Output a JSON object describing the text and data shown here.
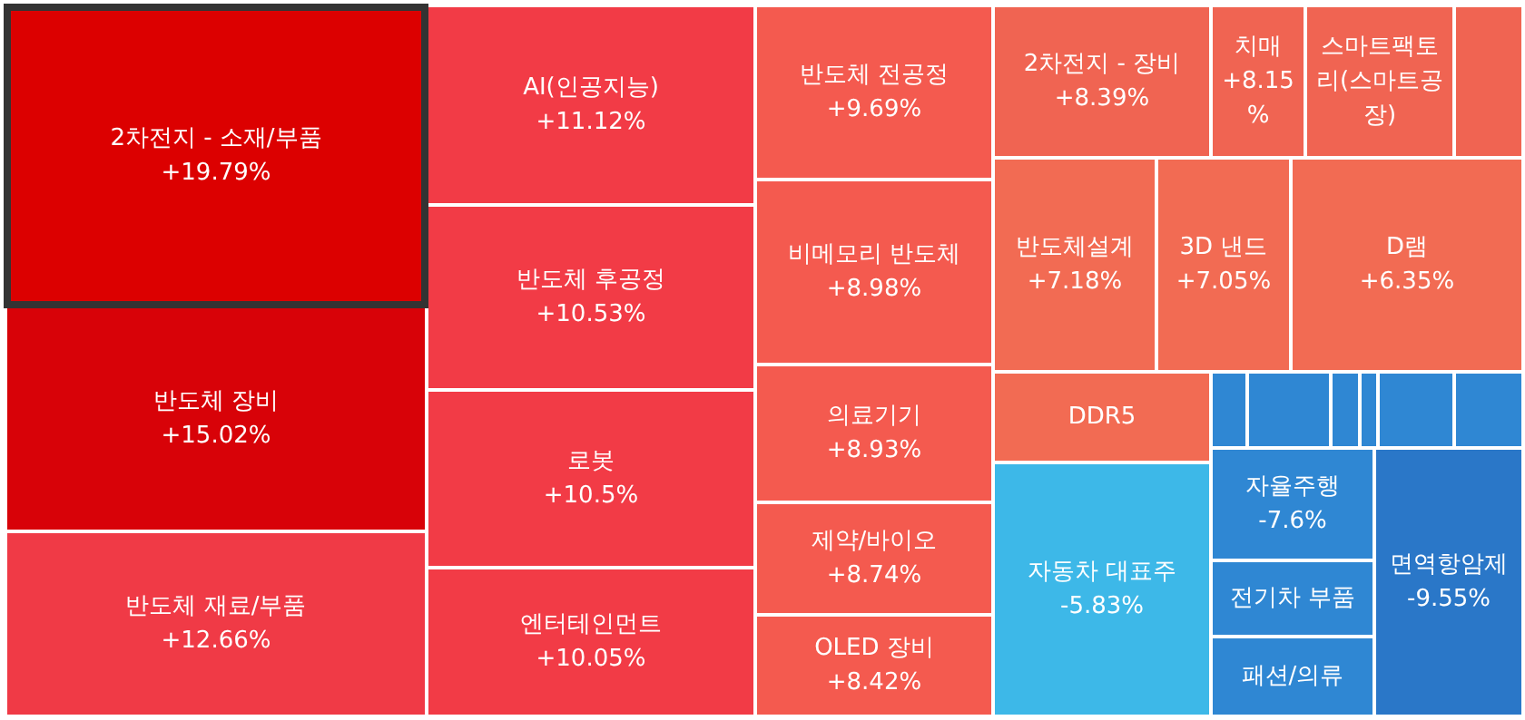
{
  "chart_data": {
    "type": "other",
    "categories": [
      "2차전지 - 소재/부품",
      "반도체 장비",
      "반도체 재료/부품",
      "AI(인공지능)",
      "반도체 후공정",
      "로봇",
      "엔터테인먼트",
      "반도체 전공정",
      "비메모리 반도체",
      "의료기기",
      "제약/바이오",
      "OLED 장비",
      "2차전지 - 장비",
      "치매",
      "스마트팩토리(스마트공장)",
      null,
      "반도체설계",
      "3D 낸드",
      "D램",
      "DDR5",
      "자동차 대표주",
      null,
      null,
      null,
      null,
      null,
      null,
      "자율주행",
      "전기차 부품",
      "패션/의류",
      "면역항암제"
    ],
    "values": [
      19.79,
      15.02,
      12.66,
      11.12,
      10.53,
      10.5,
      10.05,
      9.69,
      8.98,
      8.93,
      8.74,
      8.42,
      8.39,
      8.15,
      null,
      null,
      7.18,
      7.05,
      6.35,
      null,
      -5.83,
      null,
      null,
      null,
      null,
      null,
      null,
      -7.6,
      null,
      null,
      -9.55
    ],
    "value_labels": [
      "+19.79%",
      "+15.02%",
      "+12.66%",
      "+11.12%",
      "+10.53%",
      "+10.5%",
      "+10.05%",
      "+9.69%",
      "+8.98%",
      "+8.93%",
      "+8.74%",
      "+8.42%",
      "+8.39%",
      "+8.15%",
      null,
      null,
      "+7.18%",
      "+7.05%",
      "+6.35%",
      null,
      "-5.83%",
      null,
      null,
      null,
      null,
      null,
      null,
      "-7.6%",
      null,
      null,
      "-9.55%"
    ],
    "colors": [
      null,
      null,
      null,
      null,
      null,
      null,
      null,
      null,
      null,
      null,
      null,
      null,
      null,
      null,
      "#f06452",
      "#f06452",
      null,
      null,
      null,
      "#f26b53",
      null,
      "#2f87d3",
      "#2f87d3",
      "#2f87d3",
      "#2f87d3",
      "#2f87d3",
      "#2f87d3",
      null,
      "#2f87d3",
      "#2f87d3",
      null
    ]
  }
}
